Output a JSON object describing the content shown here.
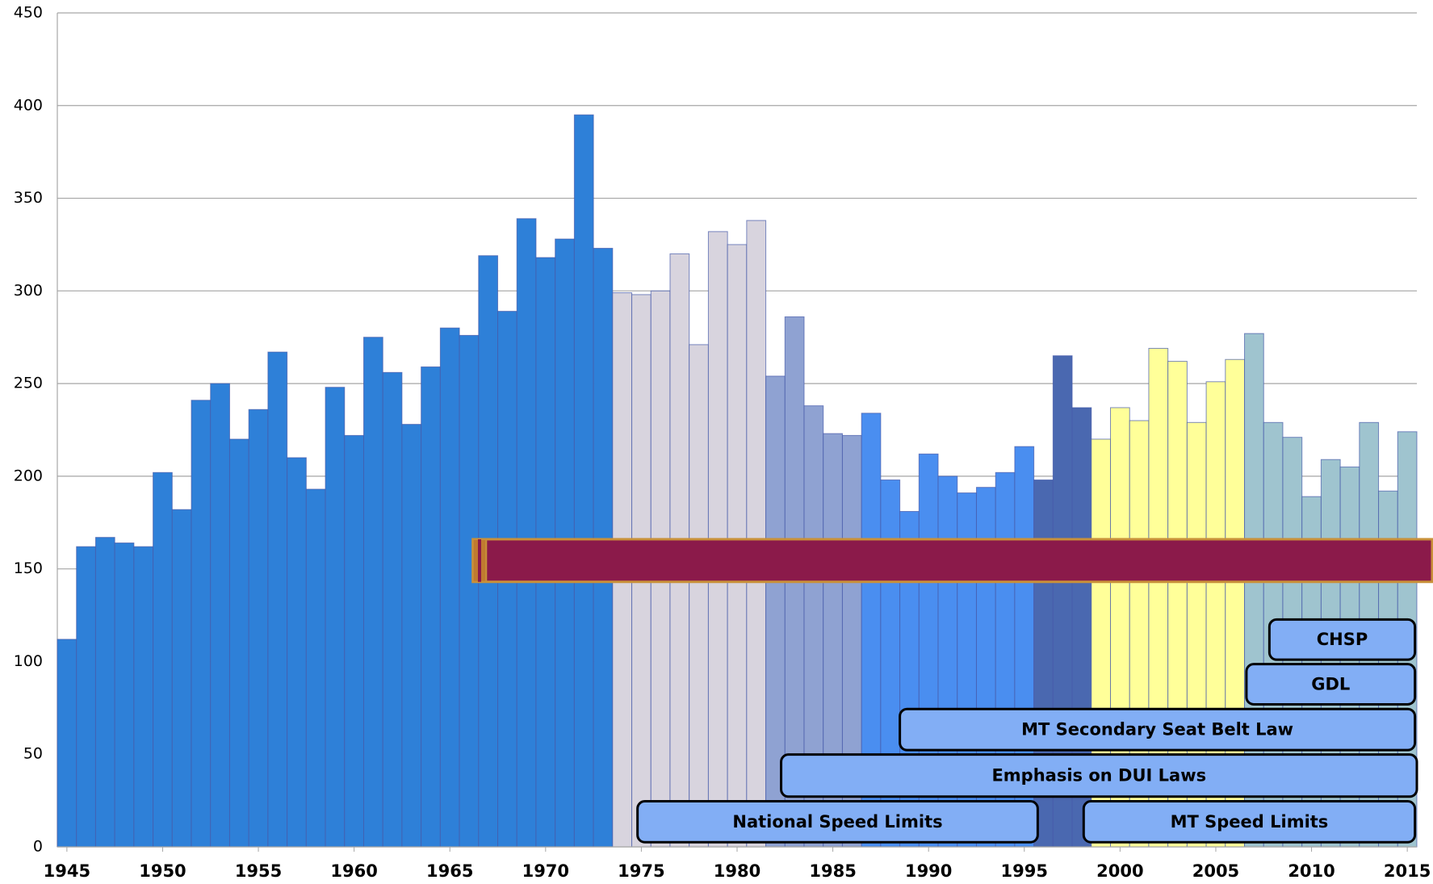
{
  "chart_data": {
    "type": "bar",
    "x": [
      1945,
      1946,
      1947,
      1948,
      1949,
      1950,
      1951,
      1952,
      1953,
      1954,
      1955,
      1956,
      1957,
      1958,
      1959,
      1960,
      1961,
      1962,
      1963,
      1964,
      1965,
      1966,
      1967,
      1968,
      1969,
      1970,
      1971,
      1972,
      1973,
      1974,
      1975,
      1976,
      1977,
      1978,
      1979,
      1980,
      1981,
      1982,
      1983,
      1984,
      1985,
      1986,
      1987,
      1988,
      1989,
      1990,
      1991,
      1992,
      1993,
      1994,
      1995,
      1996,
      1997,
      1998,
      1999,
      2000,
      2001,
      2002,
      2003,
      2004,
      2005,
      2006,
      2007,
      2008,
      2009,
      2010,
      2011,
      2012,
      2013,
      2014,
      2015
    ],
    "values": [
      112,
      162,
      167,
      164,
      162,
      202,
      182,
      241,
      250,
      220,
      236,
      267,
      210,
      193,
      248,
      222,
      275,
      256,
      228,
      259,
      280,
      276,
      319,
      289,
      339,
      318,
      328,
      395,
      323,
      299,
      298,
      300,
      320,
      271,
      332,
      325,
      338,
      254,
      286,
      238,
      223,
      222,
      234,
      198,
      181,
      212,
      200,
      191,
      194,
      202,
      216,
      198,
      265,
      237,
      220,
      237,
      230,
      269,
      262,
      229,
      251,
      263,
      277,
      229,
      221,
      189,
      209,
      205,
      229,
      192,
      224
    ],
    "colors": [
      "#2e80d8",
      "#2e80d8",
      "#2e80d8",
      "#2e80d8",
      "#2e80d8",
      "#2e80d8",
      "#2e80d8",
      "#2e80d8",
      "#2e80d8",
      "#2e80d8",
      "#2e80d8",
      "#2e80d8",
      "#2e80d8",
      "#2e80d8",
      "#2e80d8",
      "#2e80d8",
      "#2e80d8",
      "#2e80d8",
      "#2e80d8",
      "#2e80d8",
      "#2e80d8",
      "#2e80d8",
      "#2e80d8",
      "#2e80d8",
      "#2e80d8",
      "#2e80d8",
      "#2e80d8",
      "#2e80d8",
      "#2e80d8",
      "#d8d4de",
      "#d8d4de",
      "#d8d4de",
      "#d8d4de",
      "#d8d4de",
      "#d8d4de",
      "#d8d4de",
      "#d8d4de",
      "#8fa2d2",
      "#8fa2d2",
      "#8fa2d2",
      "#8fa2d2",
      "#8fa2d2",
      "#4a8ef0",
      "#4a8ef0",
      "#4a8ef0",
      "#4a8ef0",
      "#4a8ef0",
      "#4a8ef0",
      "#4a8ef0",
      "#4a8ef0",
      "#4a8ef0",
      "#4a68b0",
      "#4a68b0",
      "#4a68b0",
      "#ffff99",
      "#ffff99",
      "#ffff99",
      "#ffff99",
      "#ffff99",
      "#ffff99",
      "#ffff99",
      "#ffff99",
      "#9fc4cf",
      "#9fc4cf",
      "#9fc4cf",
      "#9fc4cf",
      "#9fc4cf",
      "#9fc4cf",
      "#9fc4cf",
      "#9fc4cf",
      "#9fc4cf"
    ],
    "xlim": [
      1944.5,
      2015.5
    ],
    "xticks": [
      1945,
      1950,
      1955,
      1960,
      1965,
      1970,
      1975,
      1980,
      1985,
      1990,
      1995,
      2000,
      2005,
      2010,
      2015
    ],
    "ylim": [
      0,
      450
    ],
    "yticks": [
      0,
      50,
      100,
      150,
      200,
      250,
      300,
      350,
      400,
      450
    ],
    "grid": true,
    "ranges": [
      {
        "start": 1966.2,
        "end": 2016.3,
        "low": 143,
        "high": 166,
        "color": "#8b1a4a"
      }
    ],
    "annotations": [
      {
        "label": "CHSP",
        "start": 2007.8,
        "end": 2015.4,
        "low": 101,
        "high": 122.7
      },
      {
        "label": "GDL",
        "start": 2006.6,
        "end": 2015.4,
        "low": 76.9,
        "high": 98.6
      },
      {
        "label": "MT Secondary Seat Belt Law",
        "start": 1988.5,
        "end": 2015.4,
        "low": 52.2,
        "high": 74.4
      },
      {
        "label": "Emphasis on DUI Laws",
        "start": 1982.3,
        "end": 2015.5,
        "low": 27.1,
        "high": 49.8
      },
      {
        "label": "National Speed Limits",
        "start": 1974.8,
        "end": 1995.7,
        "low": 2.5,
        "high": 24.6
      },
      {
        "label": "MT Speed Limits",
        "start": 1998.1,
        "end": 2015.4,
        "low": 2.5,
        "high": 24.6
      }
    ]
  }
}
